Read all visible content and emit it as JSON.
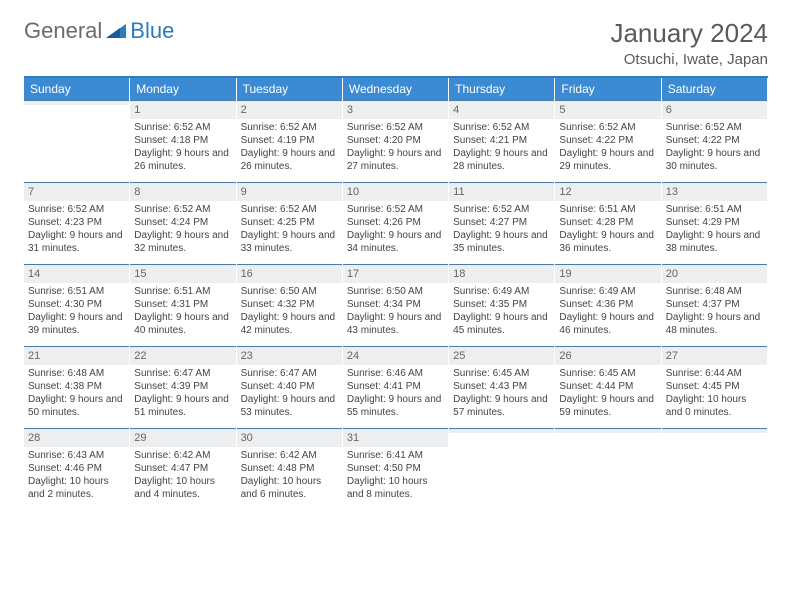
{
  "brand": {
    "part1": "General",
    "part2": "Blue"
  },
  "title": "January 2024",
  "location": "Otsuchi, Iwate, Japan",
  "colors": {
    "header_bg": "#3b8bd4",
    "header_border": "#2e7cc0",
    "daynum_bg": "#eceef0",
    "daynum_border": "#4a7ba8",
    "text": "#444444",
    "title_text": "#5a5a5a"
  },
  "day_headers": [
    "Sunday",
    "Monday",
    "Tuesday",
    "Wednesday",
    "Thursday",
    "Friday",
    "Saturday"
  ],
  "weeks": [
    [
      {
        "n": "",
        "sunrise": "",
        "sunset": "",
        "daylight": ""
      },
      {
        "n": "1",
        "sunrise": "Sunrise: 6:52 AM",
        "sunset": "Sunset: 4:18 PM",
        "daylight": "Daylight: 9 hours and 26 minutes."
      },
      {
        "n": "2",
        "sunrise": "Sunrise: 6:52 AM",
        "sunset": "Sunset: 4:19 PM",
        "daylight": "Daylight: 9 hours and 26 minutes."
      },
      {
        "n": "3",
        "sunrise": "Sunrise: 6:52 AM",
        "sunset": "Sunset: 4:20 PM",
        "daylight": "Daylight: 9 hours and 27 minutes."
      },
      {
        "n": "4",
        "sunrise": "Sunrise: 6:52 AM",
        "sunset": "Sunset: 4:21 PM",
        "daylight": "Daylight: 9 hours and 28 minutes."
      },
      {
        "n": "5",
        "sunrise": "Sunrise: 6:52 AM",
        "sunset": "Sunset: 4:22 PM",
        "daylight": "Daylight: 9 hours and 29 minutes."
      },
      {
        "n": "6",
        "sunrise": "Sunrise: 6:52 AM",
        "sunset": "Sunset: 4:22 PM",
        "daylight": "Daylight: 9 hours and 30 minutes."
      }
    ],
    [
      {
        "n": "7",
        "sunrise": "Sunrise: 6:52 AM",
        "sunset": "Sunset: 4:23 PM",
        "daylight": "Daylight: 9 hours and 31 minutes."
      },
      {
        "n": "8",
        "sunrise": "Sunrise: 6:52 AM",
        "sunset": "Sunset: 4:24 PM",
        "daylight": "Daylight: 9 hours and 32 minutes."
      },
      {
        "n": "9",
        "sunrise": "Sunrise: 6:52 AM",
        "sunset": "Sunset: 4:25 PM",
        "daylight": "Daylight: 9 hours and 33 minutes."
      },
      {
        "n": "10",
        "sunrise": "Sunrise: 6:52 AM",
        "sunset": "Sunset: 4:26 PM",
        "daylight": "Daylight: 9 hours and 34 minutes."
      },
      {
        "n": "11",
        "sunrise": "Sunrise: 6:52 AM",
        "sunset": "Sunset: 4:27 PM",
        "daylight": "Daylight: 9 hours and 35 minutes."
      },
      {
        "n": "12",
        "sunrise": "Sunrise: 6:51 AM",
        "sunset": "Sunset: 4:28 PM",
        "daylight": "Daylight: 9 hours and 36 minutes."
      },
      {
        "n": "13",
        "sunrise": "Sunrise: 6:51 AM",
        "sunset": "Sunset: 4:29 PM",
        "daylight": "Daylight: 9 hours and 38 minutes."
      }
    ],
    [
      {
        "n": "14",
        "sunrise": "Sunrise: 6:51 AM",
        "sunset": "Sunset: 4:30 PM",
        "daylight": "Daylight: 9 hours and 39 minutes."
      },
      {
        "n": "15",
        "sunrise": "Sunrise: 6:51 AM",
        "sunset": "Sunset: 4:31 PM",
        "daylight": "Daylight: 9 hours and 40 minutes."
      },
      {
        "n": "16",
        "sunrise": "Sunrise: 6:50 AM",
        "sunset": "Sunset: 4:32 PM",
        "daylight": "Daylight: 9 hours and 42 minutes."
      },
      {
        "n": "17",
        "sunrise": "Sunrise: 6:50 AM",
        "sunset": "Sunset: 4:34 PM",
        "daylight": "Daylight: 9 hours and 43 minutes."
      },
      {
        "n": "18",
        "sunrise": "Sunrise: 6:49 AM",
        "sunset": "Sunset: 4:35 PM",
        "daylight": "Daylight: 9 hours and 45 minutes."
      },
      {
        "n": "19",
        "sunrise": "Sunrise: 6:49 AM",
        "sunset": "Sunset: 4:36 PM",
        "daylight": "Daylight: 9 hours and 46 minutes."
      },
      {
        "n": "20",
        "sunrise": "Sunrise: 6:48 AM",
        "sunset": "Sunset: 4:37 PM",
        "daylight": "Daylight: 9 hours and 48 minutes."
      }
    ],
    [
      {
        "n": "21",
        "sunrise": "Sunrise: 6:48 AM",
        "sunset": "Sunset: 4:38 PM",
        "daylight": "Daylight: 9 hours and 50 minutes."
      },
      {
        "n": "22",
        "sunrise": "Sunrise: 6:47 AM",
        "sunset": "Sunset: 4:39 PM",
        "daylight": "Daylight: 9 hours and 51 minutes."
      },
      {
        "n": "23",
        "sunrise": "Sunrise: 6:47 AM",
        "sunset": "Sunset: 4:40 PM",
        "daylight": "Daylight: 9 hours and 53 minutes."
      },
      {
        "n": "24",
        "sunrise": "Sunrise: 6:46 AM",
        "sunset": "Sunset: 4:41 PM",
        "daylight": "Daylight: 9 hours and 55 minutes."
      },
      {
        "n": "25",
        "sunrise": "Sunrise: 6:45 AM",
        "sunset": "Sunset: 4:43 PM",
        "daylight": "Daylight: 9 hours and 57 minutes."
      },
      {
        "n": "26",
        "sunrise": "Sunrise: 6:45 AM",
        "sunset": "Sunset: 4:44 PM",
        "daylight": "Daylight: 9 hours and 59 minutes."
      },
      {
        "n": "27",
        "sunrise": "Sunrise: 6:44 AM",
        "sunset": "Sunset: 4:45 PM",
        "daylight": "Daylight: 10 hours and 0 minutes."
      }
    ],
    [
      {
        "n": "28",
        "sunrise": "Sunrise: 6:43 AM",
        "sunset": "Sunset: 4:46 PM",
        "daylight": "Daylight: 10 hours and 2 minutes."
      },
      {
        "n": "29",
        "sunrise": "Sunrise: 6:42 AM",
        "sunset": "Sunset: 4:47 PM",
        "daylight": "Daylight: 10 hours and 4 minutes."
      },
      {
        "n": "30",
        "sunrise": "Sunrise: 6:42 AM",
        "sunset": "Sunset: 4:48 PM",
        "daylight": "Daylight: 10 hours and 6 minutes."
      },
      {
        "n": "31",
        "sunrise": "Sunrise: 6:41 AM",
        "sunset": "Sunset: 4:50 PM",
        "daylight": "Daylight: 10 hours and 8 minutes."
      },
      {
        "n": "",
        "sunrise": "",
        "sunset": "",
        "daylight": ""
      },
      {
        "n": "",
        "sunrise": "",
        "sunset": "",
        "daylight": ""
      },
      {
        "n": "",
        "sunrise": "",
        "sunset": "",
        "daylight": ""
      }
    ]
  ]
}
